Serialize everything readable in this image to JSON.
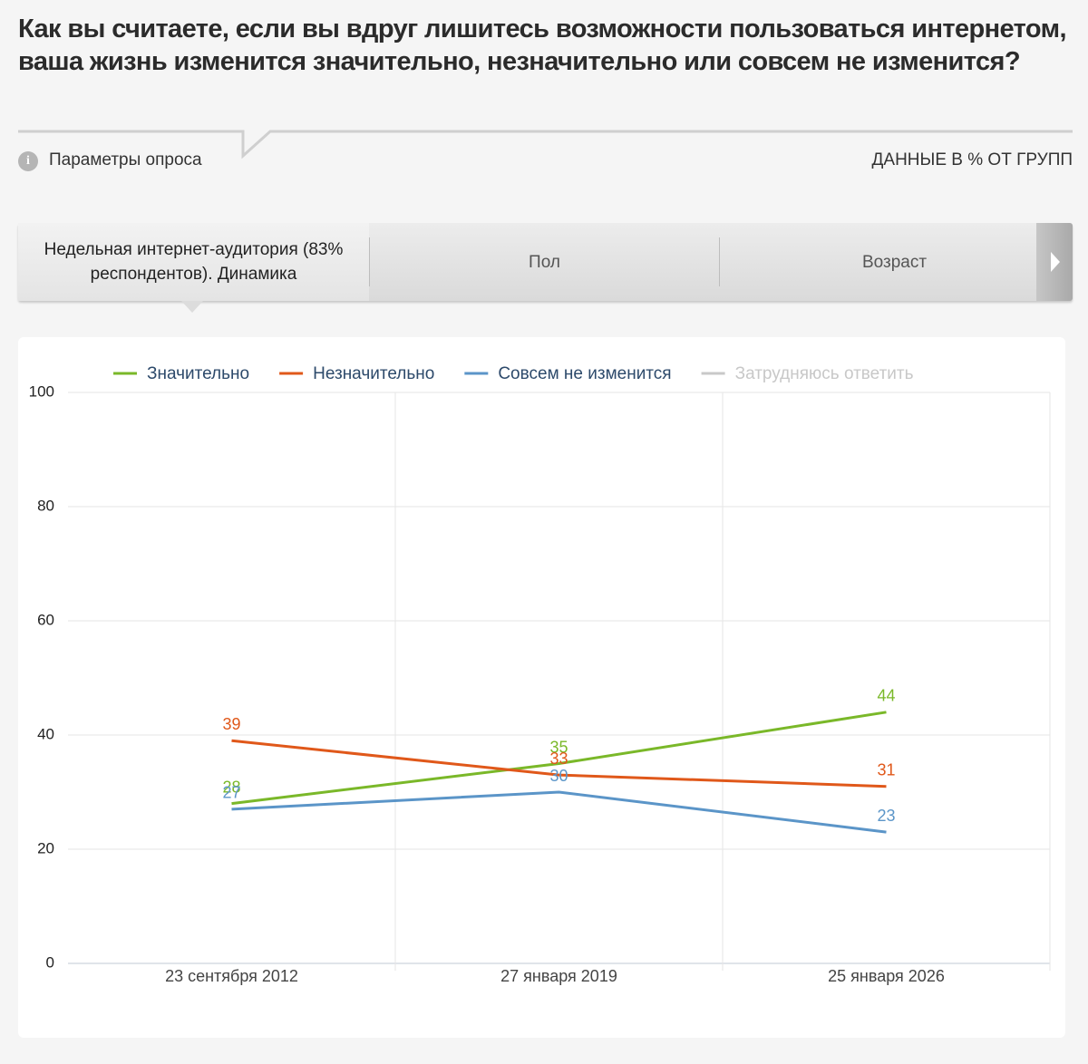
{
  "header": {
    "title": "Как вы считаете, если вы вдруг лишитесь возможности пользоваться интернетом, ваша жизнь изменится значительно, незначительно или совсем не изменится?",
    "parameters": "Параметры опроса",
    "units": "ДАННЫЕ В % ОТ ГРУПП"
  },
  "tabs": [
    "Недельная интернет-аудитория (83% респондентов). Динамика",
    "Пол",
    "Возраст"
  ],
  "chart_data": {
    "type": "line",
    "categories": [
      "23 сентября 2012",
      "27 января 2019",
      "25 января 2026"
    ],
    "series": [
      {
        "name": "Значительно",
        "color": "#7ab829",
        "values": [
          28,
          35,
          44
        ]
      },
      {
        "name": "Незначительно",
        "color": "#e0581a",
        "values": [
          39,
          33,
          31
        ]
      },
      {
        "name": "Совсем не изменится",
        "color": "#5b95c8",
        "values": [
          27,
          30,
          23
        ]
      },
      {
        "name": "Затрудняюсь ответить",
        "color": "#c8c8c8",
        "values": [
          null,
          null,
          null
        ],
        "hidden": true
      }
    ],
    "ylim": [
      0,
      100
    ],
    "yticks": [
      0,
      20,
      40,
      60,
      80,
      100
    ],
    "grid": true,
    "legend": "top",
    "data_labels": true
  }
}
